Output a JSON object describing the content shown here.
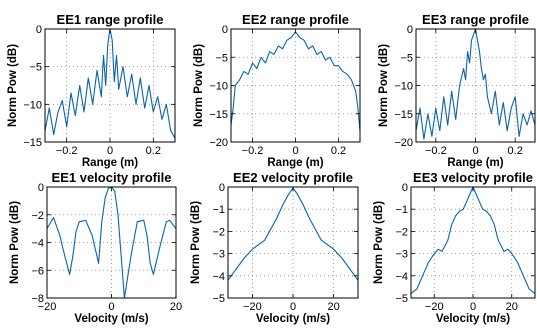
{
  "chart_data": [
    {
      "type": "line",
      "title": "EE1 range profile",
      "xlabel": "Range (m)",
      "ylabel": "Norm Pow (dB)",
      "xlim": [
        -0.3,
        0.3
      ],
      "ylim": [
        -15,
        0
      ],
      "xticks": [
        -0.2,
        0,
        0.2
      ],
      "yticks": [
        -15,
        -10,
        -5,
        0
      ],
      "xtick_labels": [
        "−0.2",
        "0",
        "0.2"
      ],
      "ytick_labels": [
        "−15",
        "−10",
        "−5",
        "0"
      ],
      "grid": true,
      "color": "#0b63b0",
      "x": [
        -0.3,
        -0.28,
        -0.26,
        -0.24,
        -0.22,
        -0.2,
        -0.18,
        -0.16,
        -0.14,
        -0.12,
        -0.1,
        -0.08,
        -0.06,
        -0.04,
        -0.03,
        -0.02,
        -0.01,
        0,
        0.01,
        0.02,
        0.03,
        0.04,
        0.06,
        0.08,
        0.1,
        0.12,
        0.14,
        0.16,
        0.18,
        0.2,
        0.22,
        0.24,
        0.26,
        0.28,
        0.3
      ],
      "y": [
        -13.5,
        -10.5,
        -14,
        -11,
        -9.5,
        -13,
        -8.5,
        -11.5,
        -7.5,
        -11,
        -6.5,
        -10,
        -5.5,
        -9,
        -3.5,
        -7.5,
        -2,
        0,
        -1.5,
        -7,
        -3.5,
        -8,
        -5,
        -9,
        -6,
        -10,
        -6.5,
        -10.5,
        -7.5,
        -11,
        -9,
        -12,
        -10,
        -13.5,
        -14.5
      ]
    },
    {
      "type": "line",
      "title": "EE2 range profile",
      "xlabel": "Range (m)",
      "ylabel": "Norm Pow (dB)",
      "xlim": [
        -0.3,
        0.3
      ],
      "ylim": [
        -20,
        0
      ],
      "xticks": [
        -0.2,
        0,
        0.2
      ],
      "yticks": [
        -20,
        -15,
        -10,
        -5,
        0
      ],
      "xtick_labels": [
        "−0.2",
        "0",
        "0.2"
      ],
      "ytick_labels": [
        "−20",
        "−15",
        "−10",
        "−5",
        "0"
      ],
      "grid": true,
      "color": "#0b63b0",
      "x": [
        -0.3,
        -0.29,
        -0.28,
        -0.26,
        -0.24,
        -0.22,
        -0.2,
        -0.18,
        -0.16,
        -0.14,
        -0.12,
        -0.1,
        -0.08,
        -0.06,
        -0.04,
        -0.02,
        0,
        0.02,
        0.04,
        0.06,
        0.08,
        0.1,
        0.12,
        0.14,
        0.16,
        0.18,
        0.2,
        0.22,
        0.24,
        0.26,
        0.28,
        0.29,
        0.3
      ],
      "y": [
        -17,
        -14,
        -10,
        -9,
        -7.5,
        -8,
        -6,
        -7,
        -5,
        -6,
        -4,
        -4.5,
        -3,
        -3.5,
        -2,
        -1.5,
        -0.5,
        -1.5,
        -2,
        -3.5,
        -3,
        -4.5,
        -4,
        -5.5,
        -5,
        -6.5,
        -6.5,
        -7.5,
        -8,
        -9,
        -11,
        -14,
        -18
      ]
    },
    {
      "type": "line",
      "title": "EE3 range profile",
      "xlabel": "Range (m)",
      "ylabel": "Norm Pow (dB)",
      "xlim": [
        -0.3,
        0.3
      ],
      "ylim": [
        -20,
        0
      ],
      "xticks": [
        -0.2,
        0,
        0.2
      ],
      "yticks": [
        -20,
        -15,
        -10,
        -5,
        0
      ],
      "xtick_labels": [
        "−0.2",
        "0",
        "0.2"
      ],
      "ytick_labels": [
        "−20",
        "−15",
        "−10",
        "−5",
        "0"
      ],
      "grid": true,
      "color": "#0b63b0",
      "x": [
        -0.3,
        -0.28,
        -0.26,
        -0.24,
        -0.22,
        -0.2,
        -0.18,
        -0.16,
        -0.14,
        -0.12,
        -0.1,
        -0.08,
        -0.06,
        -0.05,
        -0.04,
        -0.03,
        -0.02,
        -0.01,
        0,
        0.01,
        0.02,
        0.03,
        0.04,
        0.05,
        0.06,
        0.08,
        0.1,
        0.12,
        0.14,
        0.16,
        0.18,
        0.2,
        0.22,
        0.24,
        0.26,
        0.28,
        0.3
      ],
      "y": [
        -18,
        -14,
        -19.5,
        -15,
        -19,
        -14,
        -18,
        -12,
        -17,
        -11,
        -16,
        -10,
        -7,
        -9,
        -4,
        -6,
        -2,
        -1,
        0,
        -2,
        -4,
        -7,
        -9,
        -8,
        -12,
        -15,
        -11,
        -17,
        -13,
        -18,
        -14,
        -12,
        -19,
        -15,
        -17,
        -14.5,
        -17
      ]
    },
    {
      "type": "line",
      "title": "EE1 velocity profile",
      "xlabel": "Velocity (m/s)",
      "ylabel": "Norm Pow (dB)",
      "xlim": [
        -20,
        20
      ],
      "ylim": [
        -8,
        0
      ],
      "xticks": [
        -20,
        0,
        20
      ],
      "yticks": [
        -8,
        -6,
        -4,
        -2,
        0
      ],
      "xtick_labels": [
        "−20",
        "0",
        "20"
      ],
      "ytick_labels": [
        "−8",
        "−6",
        "−4",
        "−2",
        "0"
      ],
      "grid": true,
      "color": "#0b63b0",
      "x": [
        -20,
        -18,
        -16,
        -15,
        -13,
        -12,
        -11,
        -10,
        -8,
        -6,
        -4,
        -3,
        -2,
        -1,
        0,
        1,
        2,
        3,
        4,
        6,
        8,
        10,
        11,
        12,
        13,
        15,
        17,
        18,
        20
      ],
      "y": [
        -3,
        -2.2,
        -3.5,
        -4.5,
        -6.3,
        -5,
        -3.2,
        -2.5,
        -2.4,
        -3.5,
        -5.5,
        -2.5,
        -0.8,
        -0.1,
        0,
        -0.3,
        -2,
        -5,
        -8,
        -5,
        -2.5,
        -2.4,
        -3.5,
        -5.5,
        -6.3,
        -4.3,
        -2.5,
        -2.4,
        -3
      ]
    },
    {
      "type": "line",
      "title": "EE2 velocity profile",
      "xlabel": "Velocity (m/s)",
      "ylabel": "Norm Pow (dB)",
      "xlim": [
        -32,
        32
      ],
      "ylim": [
        -5,
        0
      ],
      "xticks": [
        -20,
        0,
        20
      ],
      "yticks": [
        -5,
        -4,
        -3,
        -2,
        -1,
        0
      ],
      "xtick_labels": [
        "−20",
        "0",
        "20"
      ],
      "ytick_labels": [
        "−5",
        "−4",
        "−3",
        "−2",
        "−1",
        "0"
      ],
      "grid": true,
      "color": "#0b63b0",
      "x": [
        -32,
        -28,
        -24,
        -20,
        -17,
        -14,
        -11,
        -8,
        -5,
        -2,
        0,
        2,
        5,
        8,
        11,
        14,
        17,
        20,
        24,
        28,
        32
      ],
      "y": [
        -4.2,
        -3.7,
        -3.2,
        -2.8,
        -2.6,
        -2.4,
        -1.9,
        -1.4,
        -0.8,
        -0.3,
        -0.05,
        -0.3,
        -0.8,
        -1.4,
        -1.9,
        -2.4,
        -2.6,
        -2.8,
        -3.2,
        -3.7,
        -4.2
      ]
    },
    {
      "type": "line",
      "title": "EE3 velocity profile",
      "xlabel": "Velocity (m/s)",
      "ylabel": "Norm Pow (dB)",
      "xlim": [
        -32,
        32
      ],
      "ylim": [
        -5,
        0
      ],
      "xticks": [
        -20,
        0,
        20
      ],
      "yticks": [
        -5,
        -4,
        -3,
        -2,
        -1,
        0
      ],
      "xtick_labels": [
        "−20",
        "0",
        "20"
      ],
      "ytick_labels": [
        "−5",
        "−4",
        "−3",
        "−2",
        "−1",
        "0"
      ],
      "grid": true,
      "color": "#0b63b0",
      "x": [
        -32,
        -29,
        -26,
        -23,
        -20,
        -18,
        -16,
        -13,
        -11,
        -9,
        -7,
        -5,
        -3,
        -1,
        0,
        1,
        3,
        5,
        7,
        9,
        11,
        13,
        16,
        18,
        20,
        23,
        26,
        29,
        32
      ],
      "y": [
        -4.8,
        -4.6,
        -4.0,
        -3.4,
        -3.0,
        -2.8,
        -2.9,
        -2.4,
        -1.7,
        -1.3,
        -1.1,
        -1.0,
        -0.6,
        -0.2,
        0,
        -0.2,
        -0.6,
        -1.0,
        -1.1,
        -1.3,
        -1.7,
        -2.4,
        -2.9,
        -2.8,
        -3.0,
        -3.4,
        -4.0,
        -4.6,
        -4.8
      ]
    }
  ]
}
